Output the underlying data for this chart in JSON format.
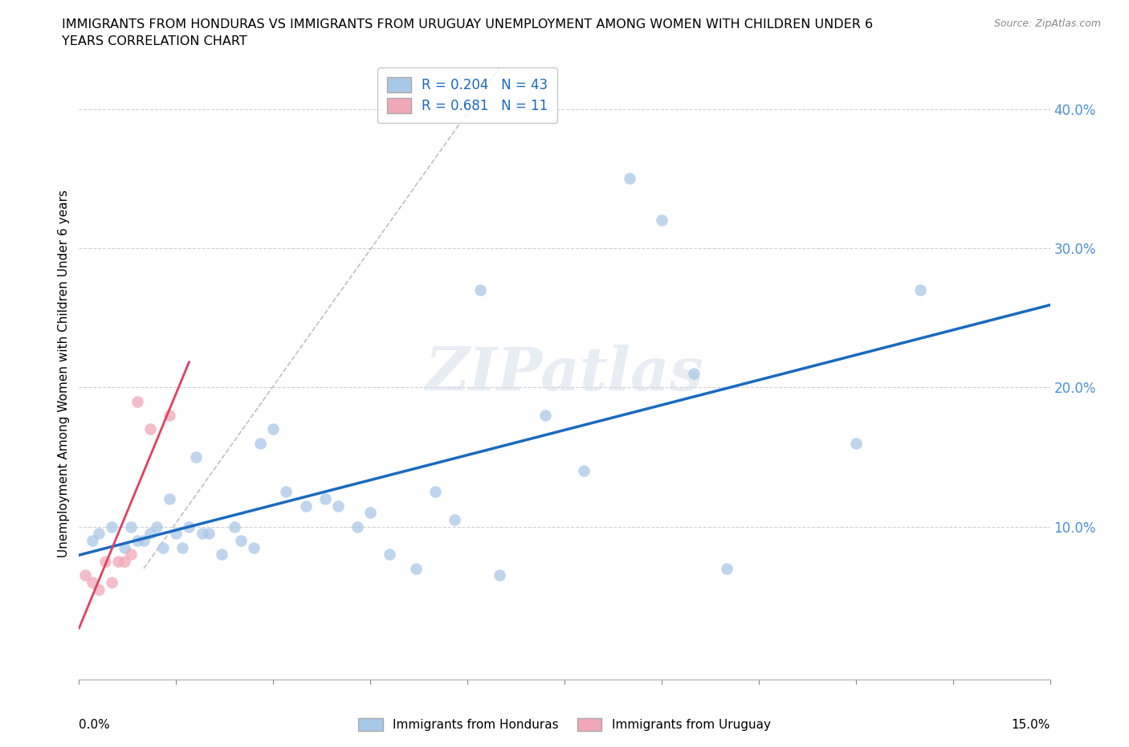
{
  "title_line1": "IMMIGRANTS FROM HONDURAS VS IMMIGRANTS FROM URUGUAY UNEMPLOYMENT AMONG WOMEN WITH CHILDREN UNDER 6",
  "title_line2": "YEARS CORRELATION CHART",
  "source": "Source: ZipAtlas.com",
  "ylabel": "Unemployment Among Women with Children Under 6 years",
  "xlim": [
    0.0,
    0.15
  ],
  "ylim": [
    -0.01,
    0.43
  ],
  "watermark": "ZIPatlas",
  "legend_R1": "R = 0.204",
  "legend_N1": "N = 43",
  "legend_R2": "R = 0.681",
  "legend_N2": "N = 11",
  "color_honduras": "#a8c8e8",
  "color_uruguay": "#f0a8b8",
  "color_line_honduras": "#1a6abf",
  "color_line_uruguay": "#e04060",
  "color_ytick": "#4a90d9",
  "honduras_x": [
    0.002,
    0.003,
    0.005,
    0.007,
    0.008,
    0.009,
    0.01,
    0.011,
    0.012,
    0.013,
    0.014,
    0.015,
    0.016,
    0.017,
    0.018,
    0.019,
    0.02,
    0.022,
    0.024,
    0.025,
    0.027,
    0.028,
    0.03,
    0.032,
    0.035,
    0.038,
    0.04,
    0.043,
    0.045,
    0.048,
    0.052,
    0.055,
    0.058,
    0.062,
    0.065,
    0.072,
    0.078,
    0.085,
    0.09,
    0.095,
    0.1,
    0.12,
    0.13
  ],
  "honduras_y": [
    0.09,
    0.095,
    0.1,
    0.085,
    0.1,
    0.09,
    0.09,
    0.095,
    0.1,
    0.085,
    0.12,
    0.095,
    0.085,
    0.1,
    0.15,
    0.095,
    0.095,
    0.08,
    0.1,
    0.09,
    0.085,
    0.16,
    0.17,
    0.125,
    0.115,
    0.12,
    0.115,
    0.1,
    0.11,
    0.08,
    0.07,
    0.125,
    0.105,
    0.27,
    0.065,
    0.18,
    0.14,
    0.35,
    0.32,
    0.21,
    0.07,
    0.16,
    0.27
  ],
  "uruguay_x": [
    0.001,
    0.002,
    0.003,
    0.004,
    0.005,
    0.006,
    0.007,
    0.008,
    0.009,
    0.011,
    0.014
  ],
  "uruguay_y": [
    0.065,
    0.06,
    0.055,
    0.075,
    0.06,
    0.075,
    0.075,
    0.08,
    0.19,
    0.17,
    0.18
  ]
}
